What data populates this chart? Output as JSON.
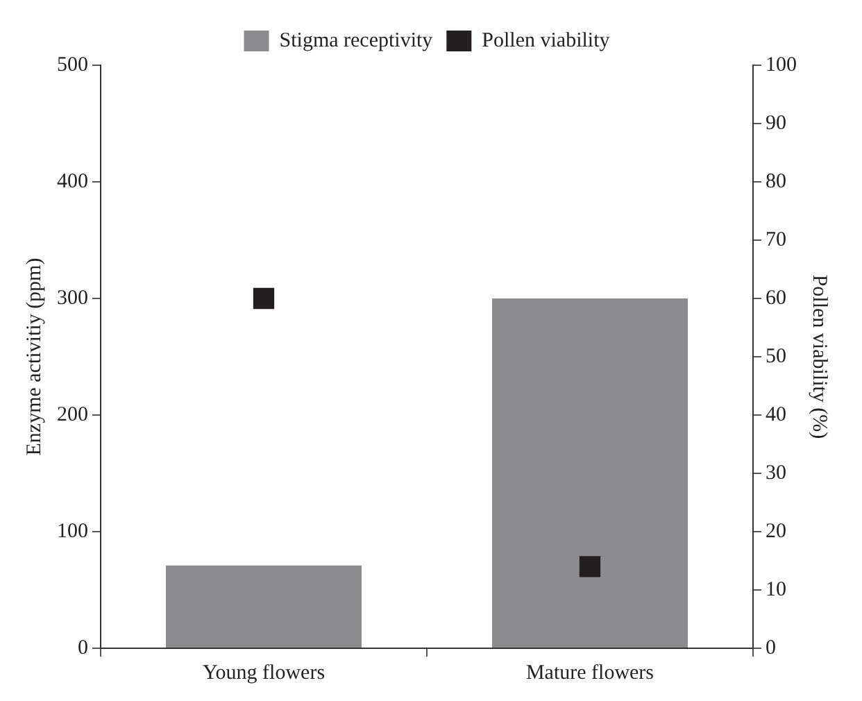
{
  "chart_data": {
    "type": "bar",
    "categories": [
      "Young flowers",
      "Mature flowers"
    ],
    "ylabel": "Enzyme activitiy (ppm)",
    "y2label": "Pollen viability (%)",
    "ylim": [
      0,
      500
    ],
    "yticks": [
      0,
      100,
      200,
      300,
      400,
      500
    ],
    "y2lim": [
      0,
      100
    ],
    "y2ticks": [
      0,
      10,
      20,
      30,
      40,
      50,
      60,
      70,
      80,
      90,
      100
    ],
    "grid": false,
    "legend": "top",
    "series": [
      {
        "name": "Stigma receptivity",
        "color": "#8c8c8e",
        "values": [
          71,
          300
        ]
      },
      {
        "name": "Pollen viability",
        "type": "scatter",
        "axis": "y2",
        "marker": "square",
        "color": "#231f20",
        "values": [
          60,
          14
        ]
      }
    ]
  }
}
